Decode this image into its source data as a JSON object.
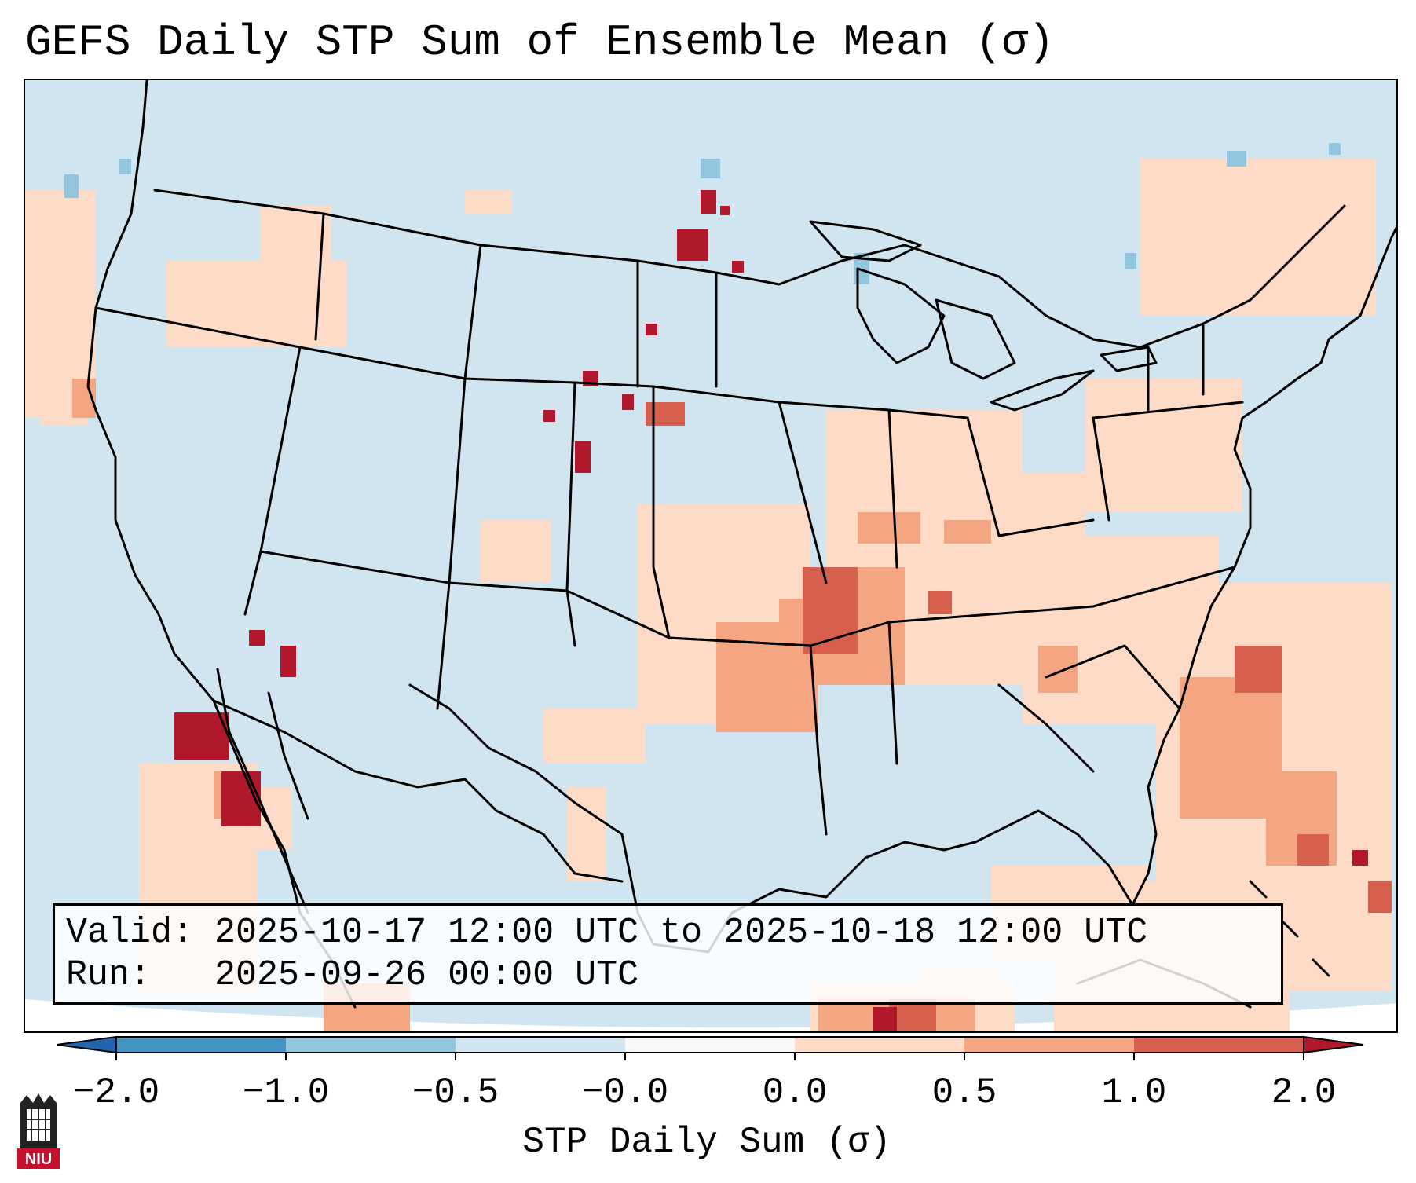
{
  "title": "GEFS Daily STP Sum of Ensemble Mean (σ)",
  "map": {
    "region": "Continental United States, northern Mexico, Gulf of Mexico, western Atlantic",
    "ocean_color": "#d1e5f0",
    "boundary_color": "#000000",
    "features": [
      "coastlines",
      "state-borders",
      "country-borders"
    ],
    "highlights": [
      {
        "area": "Arkansas / Oklahoma / Missouri corridor",
        "level": "0.5 to 1.0"
      },
      {
        "area": "South Dakota (central)",
        "level": "above 2.0"
      },
      {
        "area": "Western Kansas / eastern Colorado",
        "level": "above 2.0"
      },
      {
        "area": "Baja California Pacific offshore",
        "level": "above 2.0"
      },
      {
        "area": "Western Atlantic off Carolinas",
        "level": "0.5 to 1.0"
      }
    ]
  },
  "valid": {
    "line1": "Valid: 2025-10-17 12:00 UTC to 2025-10-18 12:00 UTC",
    "line2": "Run:   2025-09-26 00:00 UTC"
  },
  "colorbar": {
    "label": "STP Daily Sum (σ)",
    "ticks": [
      "−2.0",
      "−1.0",
      "−0.5",
      "−0.0",
      "0.0",
      "0.5",
      "1.0",
      "2.0"
    ],
    "bins": [
      {
        "range": "< -2.0",
        "color": "#2166ac"
      },
      {
        "range": "-2.0 to -1.0",
        "color": "#4393c3"
      },
      {
        "range": "-1.0 to -0.5",
        "color": "#92c5de"
      },
      {
        "range": "-0.5 to -0.0",
        "color": "#d1e5f0"
      },
      {
        "range": "-0.0 to 0.0",
        "color": "#f7f7f7"
      },
      {
        "range": "0.0 to 0.5",
        "color": "#fddbc7"
      },
      {
        "range": "0.5 to 1.0",
        "color": "#f4a582"
      },
      {
        "range": "1.0 to 2.0",
        "color": "#d6604d"
      },
      {
        "range": "> 2.0",
        "color": "#b2182b"
      }
    ]
  },
  "logo": {
    "text": "NIU"
  }
}
